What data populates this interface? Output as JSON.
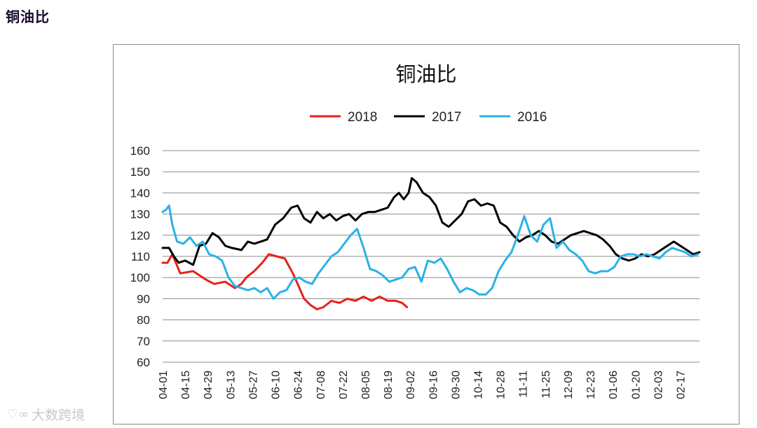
{
  "page": {
    "heading": "铜油比",
    "watermark": "大数跨境"
  },
  "colors": {
    "s2018": "#e8211b",
    "s2017": "#000000",
    "s2016": "#29b2e6",
    "grid": "#8c8c8c"
  },
  "chart_data": {
    "type": "line",
    "title": "铜油比",
    "xlabel": "",
    "ylabel": "",
    "ylim": [
      60,
      160
    ],
    "yticks": [
      60,
      70,
      80,
      90,
      100,
      110,
      120,
      130,
      140,
      150,
      160
    ],
    "grid": true,
    "legend_position": "top",
    "x_start": "04-01",
    "x_end": "03-01",
    "x_tick_labels": [
      "04-01",
      "04-15",
      "04-29",
      "05-13",
      "05-27",
      "06-10",
      "06-24",
      "07-08",
      "07-22",
      "08-05",
      "08-19",
      "09-02",
      "09-16",
      "09-30",
      "10-14",
      "10-28",
      "11-11",
      "11-25",
      "12-09",
      "12-23",
      "01-06",
      "01-20",
      "02-03",
      "02-17"
    ],
    "series": [
      {
        "name": "2018",
        "color": "#e8211b",
        "x": [
          "04-01",
          "04-04",
          "04-07",
          "04-12",
          "04-20",
          "04-28",
          "05-03",
          "05-10",
          "05-16",
          "05-20",
          "05-23",
          "05-28",
          "06-02",
          "06-06",
          "06-11",
          "06-16",
          "06-21",
          "06-24",
          "06-28",
          "07-02",
          "07-06",
          "07-10",
          "07-15",
          "07-20",
          "07-25",
          "07-30",
          "08-04",
          "08-09",
          "08-14",
          "08-19",
          "08-24",
          "08-28",
          "08-31"
        ],
        "values": [
          107,
          107,
          111,
          102,
          103,
          99,
          97,
          98,
          95,
          97,
          100,
          103,
          107,
          111,
          110,
          109,
          102,
          97,
          90,
          87,
          85,
          86,
          89,
          88,
          90,
          89,
          91,
          89,
          91,
          89,
          89,
          88,
          86
        ]
      },
      {
        "name": "2017",
        "color": "#000000",
        "x": [
          "04-01",
          "04-05",
          "04-08",
          "04-11",
          "04-15",
          "04-20",
          "04-24",
          "04-28",
          "05-02",
          "05-06",
          "05-10",
          "05-14",
          "05-20",
          "05-24",
          "05-28",
          "06-01",
          "06-05",
          "06-10",
          "06-15",
          "06-20",
          "06-24",
          "06-28",
          "07-02",
          "07-06",
          "07-10",
          "07-14",
          "07-18",
          "07-22",
          "07-26",
          "07-30",
          "08-03",
          "08-07",
          "08-11",
          "08-15",
          "08-19",
          "08-23",
          "08-26",
          "08-29",
          "09-01",
          "09-03",
          "09-06",
          "09-10",
          "09-14",
          "09-18",
          "09-22",
          "09-26",
          "09-30",
          "10-04",
          "10-08",
          "10-12",
          "10-16",
          "10-20",
          "10-24",
          "10-28",
          "11-01",
          "11-05",
          "11-09",
          "11-13",
          "11-17",
          "11-21",
          "11-25",
          "11-29",
          "12-03",
          "12-07",
          "12-11",
          "12-15",
          "12-19",
          "12-23",
          "12-27",
          "12-31",
          "01-04",
          "01-08",
          "01-12",
          "01-16",
          "01-20",
          "01-24",
          "01-28",
          "02-01",
          "02-05",
          "02-09",
          "02-13",
          "02-17",
          "02-21",
          "02-25",
          "03-01"
        ],
        "values": [
          114,
          114,
          110,
          107,
          108,
          106,
          115,
          116,
          121,
          119,
          115,
          114,
          113,
          117,
          116,
          117,
          118,
          125,
          128,
          133,
          134,
          128,
          126,
          131,
          128,
          130,
          127,
          129,
          130,
          127,
          130,
          131,
          131,
          132,
          133,
          138,
          140,
          137,
          140,
          147,
          145,
          140,
          138,
          134,
          126,
          124,
          127,
          130,
          136,
          137,
          134,
          135,
          134,
          126,
          124,
          120,
          117,
          119,
          120,
          122,
          120,
          117,
          116,
          118,
          120,
          121,
          122,
          121,
          120,
          118,
          115,
          111,
          109,
          108,
          109,
          111,
          110,
          111,
          113,
          115,
          117,
          115,
          113,
          111,
          112
        ]
      },
      {
        "name": "2016",
        "color": "#29b2e6",
        "x": [
          "04-01",
          "04-03",
          "04-05",
          "04-07",
          "04-10",
          "04-14",
          "04-18",
          "04-22",
          "04-26",
          "04-30",
          "05-04",
          "05-08",
          "05-12",
          "05-16",
          "05-20",
          "05-24",
          "05-28",
          "06-01",
          "06-05",
          "06-09",
          "06-13",
          "06-17",
          "06-21",
          "06-25",
          "06-29",
          "07-03",
          "07-07",
          "07-11",
          "07-15",
          "07-19",
          "07-23",
          "07-27",
          "07-31",
          "08-04",
          "08-08",
          "08-12",
          "08-16",
          "08-20",
          "08-24",
          "08-28",
          "09-01",
          "09-05",
          "09-09",
          "09-13",
          "09-17",
          "09-21",
          "09-25",
          "09-29",
          "10-03",
          "10-07",
          "10-11",
          "10-15",
          "10-19",
          "10-23",
          "10-27",
          "10-31",
          "11-04",
          "11-08",
          "11-12",
          "11-16",
          "11-20",
          "11-24",
          "11-28",
          "12-02",
          "12-06",
          "12-10",
          "12-14",
          "12-18",
          "12-22",
          "12-26",
          "12-30",
          "01-03",
          "01-07",
          "01-11",
          "01-15",
          "01-19",
          "01-23",
          "01-27",
          "01-31",
          "02-04",
          "02-08",
          "02-12",
          "02-16",
          "02-20",
          "02-24",
          "02-28"
        ],
        "values": [
          131,
          132,
          134,
          125,
          117,
          116,
          119,
          115,
          117,
          111,
          110,
          108,
          100,
          96,
          95,
          94,
          95,
          93,
          95,
          90,
          93,
          94,
          99,
          100,
          98,
          97,
          102,
          106,
          110,
          112,
          116,
          120,
          123,
          114,
          104,
          103,
          101,
          98,
          99,
          100,
          104,
          105,
          98,
          108,
          107,
          109,
          104,
          98,
          93,
          95,
          94,
          92,
          92,
          95,
          103,
          108,
          112,
          120,
          129,
          120,
          117,
          125,
          128,
          114,
          117,
          113,
          111,
          108,
          103,
          102,
          103,
          103,
          105,
          110,
          111,
          111,
          110,
          111,
          110,
          109,
          112,
          114,
          113,
          112,
          110,
          111
        ]
      }
    ]
  }
}
